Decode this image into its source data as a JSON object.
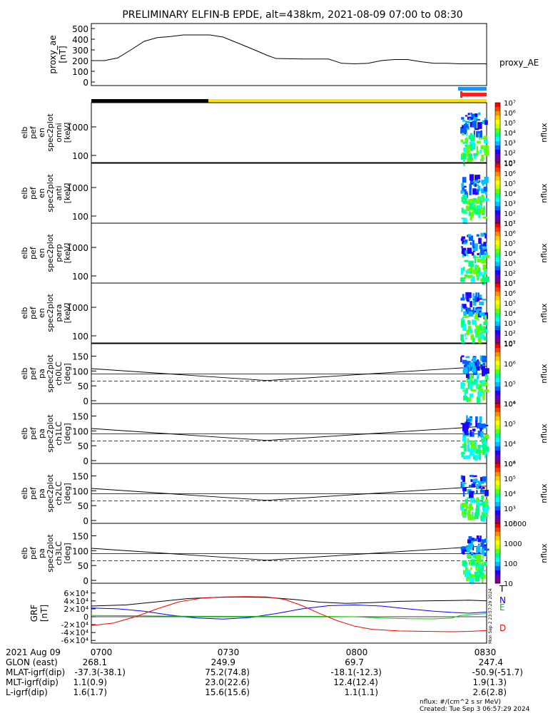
{
  "title": "PRELIMINARY ELFIN-B EPDE, alt=438km, 2021-08-09 07:00 to 08:30",
  "chart_data": [
    {
      "type": "line",
      "panel": "proxy_ae",
      "ylabel": [
        "proxy_ae",
        "[nT]"
      ],
      "legend": "proxy_AE",
      "ylim": [
        0,
        500
      ],
      "yticks": [
        "0",
        "100",
        "200",
        "300",
        "400",
        "500"
      ],
      "xlim_minutes": [
        0,
        90
      ],
      "points": [
        [
          0,
          200
        ],
        [
          3,
          200
        ],
        [
          6,
          225
        ],
        [
          9,
          300
        ],
        [
          12,
          380
        ],
        [
          15,
          415
        ],
        [
          18,
          425
        ],
        [
          21,
          440
        ],
        [
          27,
          440
        ],
        [
          30,
          420
        ],
        [
          36,
          320
        ],
        [
          40,
          250
        ],
        [
          42,
          220
        ],
        [
          48,
          215
        ],
        [
          54,
          215
        ],
        [
          57,
          175
        ],
        [
          60,
          170
        ],
        [
          63,
          175
        ],
        [
          66,
          200
        ],
        [
          69,
          210
        ],
        [
          72,
          210
        ],
        [
          75,
          190
        ],
        [
          78,
          175
        ],
        [
          81,
          175
        ],
        [
          84,
          170
        ],
        [
          90,
          170
        ]
      ]
    },
    {
      "type": "heatmap",
      "panel": "elb_pef_en_spec2plot_omni",
      "ylabel": [
        "elb",
        "pef",
        "en",
        "spec2plot",
        "omni",
        "[keV]"
      ],
      "yticks": [
        "100",
        "1000"
      ],
      "zlabel": "nflux",
      "zticks": [
        "10¹",
        "10²",
        "10³",
        "10⁴",
        "10⁵",
        "10⁶",
        "10⁷"
      ]
    },
    {
      "type": "heatmap",
      "panel": "elb_pef_en_spec2plot_anti",
      "ylabel": [
        "elb",
        "pef",
        "en",
        "spec2plot",
        "anti",
        "[keV]"
      ],
      "yticks": [
        "100",
        "1000"
      ],
      "zlabel": "nflux",
      "zticks": [
        "10¹",
        "10²",
        "10³",
        "10⁴",
        "10⁵",
        "10⁶",
        "10⁷"
      ]
    },
    {
      "type": "heatmap",
      "panel": "elb_pef_en_spec2plot_perp",
      "ylabel": [
        "elb",
        "pef",
        "en",
        "spec2plot",
        "perp",
        "[keV]"
      ],
      "yticks": [
        "100",
        "1000"
      ],
      "zlabel": "nflux",
      "zticks": [
        "10¹",
        "10²",
        "10³",
        "10⁴",
        "10⁵",
        "10⁶",
        "10⁷"
      ]
    },
    {
      "type": "heatmap",
      "panel": "elb_pef_en_spec2plot_para",
      "ylabel": [
        "elb",
        "pef",
        "en",
        "spec2plot",
        "para",
        "[keV]"
      ],
      "yticks": [
        "100",
        "1000"
      ],
      "zlabel": "nflux",
      "zticks": [
        "10¹",
        "10²",
        "10³",
        "10⁴",
        "10⁵",
        "10⁶",
        "10⁷"
      ]
    },
    {
      "type": "heatmap",
      "panel": "elb_pef_pa_spec2plot_ch0LC",
      "ylabel": [
        "elb",
        "pef",
        "pa",
        "spec2plot",
        "ch0LC",
        "[deg]"
      ],
      "yticks": [
        "0",
        "50",
        "100",
        "150"
      ],
      "zlabel": "nflux",
      "zticks": [
        "10⁴",
        "10⁵",
        "10⁶",
        "10⁷"
      ]
    },
    {
      "type": "heatmap",
      "panel": "elb_pef_pa_spec2plot_ch1LC",
      "ylabel": [
        "elb",
        "pef",
        "pa",
        "spec2plot",
        "ch1LC",
        "[deg]"
      ],
      "yticks": [
        "0",
        "50",
        "100",
        "150"
      ],
      "zlabel": "nflux",
      "zticks": [
        "10³",
        "10⁴",
        "10⁵",
        "10⁶"
      ]
    },
    {
      "type": "heatmap",
      "panel": "elb_pef_pa_spec2plot_ch2LC",
      "ylabel": [
        "elb",
        "pef",
        "pa",
        "spec2plot",
        "ch2LC",
        "[deg]"
      ],
      "yticks": [
        "0",
        "50",
        "100",
        "150"
      ],
      "zlabel": "nflux",
      "zticks": [
        "10²",
        "10³",
        "10⁴",
        "10⁵",
        "10⁶"
      ]
    },
    {
      "type": "heatmap",
      "panel": "elb_pef_pa_spec2plot_ch3LC",
      "ylabel": [
        "elb",
        "pef",
        "pa",
        "spec2plot",
        "ch3LC",
        "[deg]"
      ],
      "yticks": [
        "0",
        "50",
        "100",
        "150"
      ],
      "zlabel": "nflux",
      "zticks": [
        "10",
        "100",
        "1000",
        "10000"
      ]
    },
    {
      "type": "line",
      "panel": "GRF",
      "ylabel": [
        "GRF",
        "[nT]"
      ],
      "ylim": [
        -65000,
        65000
      ],
      "yticks": [
        "-6×10⁴",
        "-4×10⁴",
        "-2×10⁴",
        "0",
        "2×10⁴",
        "4×10⁴",
        "6×10⁴"
      ],
      "series": [
        {
          "name": "T",
          "color": "#000000",
          "points": [
            [
              0,
              27000
            ],
            [
              8,
              30000
            ],
            [
              15,
              38000
            ],
            [
              22,
              46000
            ],
            [
              28,
              49000
            ],
            [
              34,
              50000
            ],
            [
              40,
              49000
            ],
            [
              46,
              44000
            ],
            [
              52,
              37000
            ],
            [
              58,
              34000
            ],
            [
              64,
              36000
            ],
            [
              70,
              39000
            ],
            [
              76,
              40000
            ],
            [
              82,
              41000
            ],
            [
              86,
              42000
            ],
            [
              90,
              40000
            ]
          ]
        },
        {
          "name": "N",
          "color": "#0000ff",
          "points": [
            [
              0,
              22000
            ],
            [
              6,
              20000
            ],
            [
              12,
              14000
            ],
            [
              18,
              4000
            ],
            [
              24,
              -3000
            ],
            [
              30,
              -6000
            ],
            [
              36,
              -2000
            ],
            [
              42,
              8000
            ],
            [
              48,
              20000
            ],
            [
              54,
              28000
            ],
            [
              60,
              30000
            ],
            [
              66,
              27000
            ],
            [
              72,
              20000
            ],
            [
              78,
              14000
            ],
            [
              82,
              11000
            ],
            [
              86,
              9000
            ],
            [
              90,
              12000
            ]
          ]
        },
        {
          "name": "E",
          "color": "#00cc00",
          "points": [
            [
              0,
              3000
            ],
            [
              10,
              2500
            ],
            [
              20,
              1500
            ],
            [
              30,
              1000
            ],
            [
              40,
              1000
            ],
            [
              50,
              1000
            ],
            [
              60,
              0
            ],
            [
              66,
              -3000
            ],
            [
              72,
              -5000
            ],
            [
              78,
              -5500
            ],
            [
              82,
              -3000
            ],
            [
              84,
              3000
            ],
            [
              87,
              6000
            ],
            [
              90,
              8000
            ]
          ]
        },
        {
          "name": "D",
          "color": "#ff0000",
          "points": [
            [
              0,
              -22000
            ],
            [
              5,
              -16000
            ],
            [
              10,
              0
            ],
            [
              15,
              20000
            ],
            [
              20,
              38000
            ],
            [
              25,
              47000
            ],
            [
              30,
              50000
            ],
            [
              35,
              51000
            ],
            [
              40,
              50000
            ],
            [
              44,
              44000
            ],
            [
              48,
              28000
            ],
            [
              52,
              8000
            ],
            [
              56,
              -10000
            ],
            [
              60,
              -24000
            ],
            [
              64,
              -32000
            ],
            [
              70,
              -36000
            ],
            [
              76,
              -37000
            ],
            [
              82,
              -38000
            ],
            [
              86,
              -37000
            ],
            [
              90,
              -35000
            ]
          ]
        }
      ]
    }
  ],
  "xaxis": {
    "date": "2021 Aug 09",
    "ticks": [
      "0700",
      "0730",
      "0800",
      "0830"
    ],
    "rows": [
      {
        "label": "GLON (east)",
        "values": [
          "268.1",
          "249.9",
          "69.7",
          "247.4"
        ]
      },
      {
        "label": "MLAT-igrf(dip)",
        "values": [
          "-37.3(-38.1)",
          "75.2(74.8)",
          "-18.1(-12.3)",
          "-50.9(-51.7)"
        ]
      },
      {
        "label": "MLT-igrf(dip)",
        "values": [
          "1.1(0.9)",
          "23.0(22.6)",
          "12.4(12.4)",
          "1.9(1.3)"
        ]
      },
      {
        "label": "L-igrf(dip)",
        "values": [
          "1.6(1.7)",
          "15.6(15.6)",
          "1.1(1.1)",
          "2.6(2.8)"
        ]
      }
    ]
  },
  "footer": {
    "units": "nflux: #/(cm^2 s sr MeV)",
    "created": "Created: Tue Sep  3 06:57:29 2024",
    "side_stamp": "Mon Sep  2 23:57:29 2024"
  },
  "colors": {
    "night_bar": "#000000",
    "day_bar": "#ffe000",
    "science_bar": "#1e90ff",
    "fgm_bar": "#ff2020"
  }
}
